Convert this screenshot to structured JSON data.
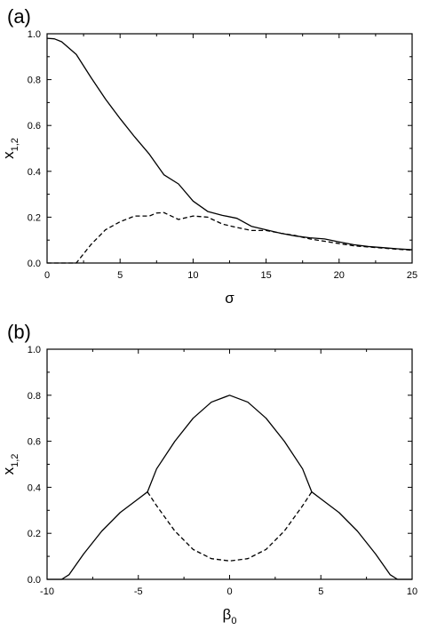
{
  "chart_data": [
    {
      "type": "line",
      "panel_label": "(a)",
      "xlabel": "σ",
      "ylabel": "x",
      "ylabel_sub": "1,2",
      "xlim": [
        0,
        25
      ],
      "ylim": [
        0,
        1.0
      ],
      "xticks": [
        0,
        5,
        10,
        15,
        20,
        25
      ],
      "xtick_labels": [
        "0",
        "5",
        "10",
        "15",
        "20",
        "25"
      ],
      "yticks": [
        0,
        0.2,
        0.4,
        0.6,
        0.8,
        1.0
      ],
      "ytick_labels": [
        "0.0",
        "0.2",
        "0.4",
        "0.6",
        "0.8",
        "1.0"
      ],
      "grid": false,
      "legend": "none",
      "series": [
        {
          "style": "solid",
          "x": [
            0,
            0.5,
            1,
            2,
            3,
            4,
            5,
            6,
            7,
            8,
            9,
            10,
            11,
            12,
            13,
            14,
            15,
            16,
            17,
            18,
            19,
            20,
            21,
            22,
            23,
            24,
            25
          ],
          "y": [
            0.98,
            0.978,
            0.965,
            0.91,
            0.81,
            0.715,
            0.63,
            0.55,
            0.475,
            0.385,
            0.345,
            0.27,
            0.225,
            0.208,
            0.195,
            0.16,
            0.145,
            0.13,
            0.118,
            0.11,
            0.105,
            0.092,
            0.08,
            0.072,
            0.067,
            0.062,
            0.058
          ]
        },
        {
          "style": "dashed",
          "x": [
            0,
            1,
            2,
            2.5,
            3,
            4,
            5,
            6,
            7,
            7.5,
            8,
            9,
            10,
            11,
            12,
            13,
            14,
            15,
            16,
            17,
            18,
            19,
            20,
            21,
            22,
            23,
            24,
            25
          ],
          "y": [
            0.0,
            0.0,
            0.0,
            0.04,
            0.08,
            0.145,
            0.18,
            0.205,
            0.205,
            0.218,
            0.22,
            0.19,
            0.205,
            0.2,
            0.17,
            0.155,
            0.142,
            0.142,
            0.13,
            0.12,
            0.105,
            0.095,
            0.085,
            0.075,
            0.07,
            0.065,
            0.06,
            0.056
          ]
        }
      ]
    },
    {
      "type": "line",
      "panel_label": "(b)",
      "xlabel": "β",
      "xlabel_sub": "0",
      "ylabel": "x",
      "ylabel_sub": "1,2",
      "xlim": [
        -10,
        10
      ],
      "ylim": [
        0,
        1.0
      ],
      "xticks": [
        -10,
        -5,
        0,
        5,
        10
      ],
      "xtick_labels": [
        "-10",
        "-5",
        "0",
        "5",
        "10"
      ],
      "yticks": [
        0,
        0.2,
        0.4,
        0.6,
        0.8,
        1.0
      ],
      "ytick_labels": [
        "0.0",
        "0.2",
        "0.4",
        "0.6",
        "0.8",
        "1.0"
      ],
      "grid": false,
      "legend": "none",
      "series": [
        {
          "style": "solid",
          "x": [
            -10,
            -9.2,
            -8.8,
            -8,
            -7,
            -6,
            -5,
            -4.5,
            -4,
            -3,
            -2,
            -1,
            0,
            1,
            2,
            3,
            4,
            4.5,
            5,
            6,
            7,
            8,
            8.8,
            9.2,
            10
          ],
          "y": [
            0.0,
            0.0,
            0.02,
            0.11,
            0.21,
            0.29,
            0.35,
            0.38,
            0.48,
            0.6,
            0.7,
            0.77,
            0.8,
            0.77,
            0.7,
            0.6,
            0.48,
            0.38,
            0.35,
            0.29,
            0.21,
            0.11,
            0.02,
            0.0,
            0.0
          ]
        },
        {
          "style": "dashed",
          "x": [
            -4.5,
            -4,
            -3,
            -2,
            -1,
            0,
            1,
            2,
            3,
            4,
            4.5
          ],
          "y": [
            0.38,
            0.32,
            0.21,
            0.13,
            0.09,
            0.08,
            0.09,
            0.13,
            0.21,
            0.32,
            0.38
          ]
        }
      ]
    }
  ]
}
